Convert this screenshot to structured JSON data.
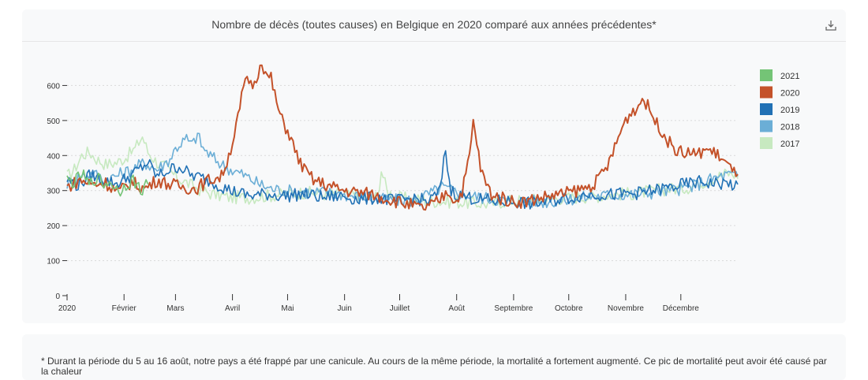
{
  "chart_data": {
    "type": "line",
    "title": "Nombre de décès (toutes causes) en Belgique en 2020 comparé aux années précédentes*",
    "y_ticks": [
      "0",
      "100",
      "200",
      "300",
      "400",
      "500",
      "600"
    ],
    "ylim": [
      0,
      700
    ],
    "x_ticks": [
      "2020",
      "Février",
      "Mars",
      "Avril",
      "Mai",
      "Juin",
      "Juillet",
      "Août",
      "Septembre",
      "Octobre",
      "Novembre",
      "Décembre"
    ],
    "x_tick_days": [
      1,
      32,
      60,
      91,
      121,
      152,
      182,
      213,
      244,
      274,
      305,
      335
    ],
    "xlim": [
      1,
      366
    ],
    "grid": "horizontal-dotted",
    "legend_position": "right",
    "series": [
      {
        "name": "2021",
        "color": "#74c476",
        "points": [
          [
            1,
            330
          ],
          [
            5,
            322
          ],
          [
            9,
            348
          ],
          [
            13,
            315
          ],
          [
            17,
            338
          ],
          [
            21,
            318
          ],
          [
            25,
            325
          ],
          [
            29,
            296
          ],
          [
            33,
            318
          ],
          [
            37,
            330
          ],
          [
            41,
            300
          ],
          [
            45,
            322
          ]
        ]
      },
      {
        "name": "2020",
        "color": "#c4522a",
        "points": [
          [
            1,
            310
          ],
          [
            8,
            330
          ],
          [
            15,
            318
          ],
          [
            22,
            322
          ],
          [
            29,
            295
          ],
          [
            36,
            325
          ],
          [
            43,
            305
          ],
          [
            50,
            330
          ],
          [
            57,
            318
          ],
          [
            64,
            310
          ],
          [
            71,
            305
          ],
          [
            78,
            330
          ],
          [
            85,
            340
          ],
          [
            89,
            400
          ],
          [
            92,
            460
          ],
          [
            95,
            530
          ],
          [
            97,
            600
          ],
          [
            100,
            615
          ],
          [
            103,
            600
          ],
          [
            105,
            640
          ],
          [
            107,
            675
          ],
          [
            109,
            630
          ],
          [
            112,
            620
          ],
          [
            115,
            550
          ],
          [
            118,
            500
          ],
          [
            122,
            460
          ],
          [
            126,
            400
          ],
          [
            130,
            360
          ],
          [
            135,
            330
          ],
          [
            140,
            320
          ],
          [
            145,
            310
          ],
          [
            152,
            300
          ],
          [
            159,
            295
          ],
          [
            166,
            290
          ],
          [
            173,
            280
          ],
          [
            180,
            270
          ],
          [
            187,
            260
          ],
          [
            194,
            248
          ],
          [
            201,
            262
          ],
          [
            205,
            278
          ],
          [
            208,
            300
          ],
          [
            210,
            285
          ],
          [
            213,
            268
          ],
          [
            216,
            300
          ],
          [
            219,
            370
          ],
          [
            221,
            440
          ],
          [
            222,
            495
          ],
          [
            224,
            440
          ],
          [
            226,
            360
          ],
          [
            229,
            320
          ],
          [
            232,
            290
          ],
          [
            236,
            280
          ],
          [
            243,
            270
          ],
          [
            250,
            268
          ],
          [
            257,
            278
          ],
          [
            264,
            285
          ],
          [
            271,
            290
          ],
          [
            278,
            300
          ],
          [
            285,
            310
          ],
          [
            290,
            330
          ],
          [
            295,
            370
          ],
          [
            299,
            420
          ],
          [
            303,
            480
          ],
          [
            306,
            510
          ],
          [
            309,
            530
          ],
          [
            312,
            540
          ],
          [
            314,
            565
          ],
          [
            316,
            550
          ],
          [
            319,
            520
          ],
          [
            322,
            490
          ],
          [
            325,
            470
          ],
          [
            328,
            440
          ],
          [
            332,
            420
          ],
          [
            336,
            405
          ],
          [
            340,
            410
          ],
          [
            344,
            400
          ],
          [
            348,
            420
          ],
          [
            352,
            410
          ],
          [
            356,
            400
          ],
          [
            360,
            375
          ],
          [
            364,
            350
          ],
          [
            366,
            360
          ]
        ]
      },
      {
        "name": "2019",
        "color": "#2171b5",
        "points": [
          [
            1,
            330
          ],
          [
            7,
            315
          ],
          [
            14,
            345
          ],
          [
            21,
            330
          ],
          [
            28,
            320
          ],
          [
            35,
            340
          ],
          [
            40,
            360
          ],
          [
            45,
            380
          ],
          [
            50,
            340
          ],
          [
            55,
            355
          ],
          [
            62,
            370
          ],
          [
            68,
            345
          ],
          [
            75,
            335
          ],
          [
            82,
            320
          ],
          [
            90,
            300
          ],
          [
            100,
            285
          ],
          [
            110,
            290
          ],
          [
            120,
            285
          ],
          [
            130,
            290
          ],
          [
            140,
            280
          ],
          [
            150,
            285
          ],
          [
            160,
            275
          ],
          [
            170,
            280
          ],
          [
            180,
            270
          ],
          [
            190,
            278
          ],
          [
            198,
            268
          ],
          [
            204,
            300
          ],
          [
            206,
            380
          ],
          [
            207,
            425
          ],
          [
            208,
            360
          ],
          [
            210,
            300
          ],
          [
            215,
            285
          ],
          [
            225,
            275
          ],
          [
            235,
            270
          ],
          [
            245,
            268
          ],
          [
            255,
            262
          ],
          [
            265,
            272
          ],
          [
            275,
            280
          ],
          [
            285,
            290
          ],
          [
            295,
            288
          ],
          [
            305,
            290
          ],
          [
            315,
            295
          ],
          [
            325,
            305
          ],
          [
            335,
            315
          ],
          [
            345,
            325
          ],
          [
            355,
            320
          ],
          [
            362,
            320
          ],
          [
            366,
            305
          ]
        ]
      },
      {
        "name": "2018",
        "color": "#6baed6",
        "points": [
          [
            1,
            320
          ],
          [
            8,
            340
          ],
          [
            15,
            350
          ],
          [
            22,
            330
          ],
          [
            29,
            345
          ],
          [
            36,
            360
          ],
          [
            43,
            380
          ],
          [
            50,
            360
          ],
          [
            57,
            390
          ],
          [
            60,
            420
          ],
          [
            63,
            435
          ],
          [
            66,
            448
          ],
          [
            69,
            430
          ],
          [
            72,
            460
          ],
          [
            75,
            420
          ],
          [
            80,
            395
          ],
          [
            85,
            375
          ],
          [
            90,
            360
          ],
          [
            97,
            345
          ],
          [
            105,
            320
          ],
          [
            112,
            305
          ],
          [
            120,
            300
          ],
          [
            130,
            295
          ],
          [
            140,
            295
          ],
          [
            150,
            290
          ],
          [
            160,
            283
          ],
          [
            170,
            275
          ],
          [
            180,
            272
          ],
          [
            190,
            272
          ],
          [
            200,
            295
          ],
          [
            205,
            310
          ],
          [
            210,
            300
          ],
          [
            220,
            285
          ],
          [
            230,
            278
          ],
          [
            240,
            270
          ],
          [
            250,
            270
          ],
          [
            260,
            268
          ],
          [
            270,
            272
          ],
          [
            280,
            280
          ],
          [
            290,
            285
          ],
          [
            300,
            288
          ],
          [
            310,
            290
          ],
          [
            320,
            295
          ],
          [
            330,
            300
          ],
          [
            340,
            310
          ],
          [
            350,
            330
          ],
          [
            360,
            345
          ],
          [
            366,
            340
          ]
        ]
      },
      {
        "name": "2017",
        "color": "#c7e9c0",
        "points": [
          [
            1,
            340
          ],
          [
            5,
            360
          ],
          [
            9,
            400
          ],
          [
            13,
            410
          ],
          [
            17,
            390
          ],
          [
            22,
            375
          ],
          [
            28,
            380
          ],
          [
            33,
            395
          ],
          [
            38,
            420
          ],
          [
            42,
            455
          ],
          [
            45,
            410
          ],
          [
            50,
            380
          ],
          [
            55,
            365
          ],
          [
            60,
            340
          ],
          [
            65,
            325
          ],
          [
            72,
            305
          ],
          [
            80,
            290
          ],
          [
            90,
            280
          ],
          [
            100,
            280
          ],
          [
            110,
            285
          ],
          [
            120,
            290
          ],
          [
            130,
            295
          ],
          [
            140,
            290
          ],
          [
            150,
            288
          ],
          [
            160,
            285
          ],
          [
            170,
            282
          ],
          [
            172,
            360
          ],
          [
            175,
            300
          ],
          [
            180,
            280
          ],
          [
            190,
            275
          ],
          [
            200,
            270
          ],
          [
            210,
            268
          ],
          [
            220,
            265
          ],
          [
            230,
            262
          ],
          [
            240,
            270
          ],
          [
            250,
            272
          ],
          [
            260,
            275
          ],
          [
            270,
            278
          ],
          [
            280,
            282
          ],
          [
            290,
            285
          ],
          [
            300,
            290
          ],
          [
            310,
            292
          ],
          [
            320,
            300
          ],
          [
            330,
            305
          ],
          [
            340,
            310
          ],
          [
            350,
            330
          ],
          [
            360,
            350
          ],
          [
            366,
            345
          ]
        ]
      }
    ]
  },
  "download_icon": "download-icon",
  "footnote": "* Durant la période du 5 au 16 août, notre pays a été frappé par une canicule. Au cours de la même période, la mortalité a fortement augmenté. Ce pic de mortalité peut avoir été causé par la chaleur"
}
